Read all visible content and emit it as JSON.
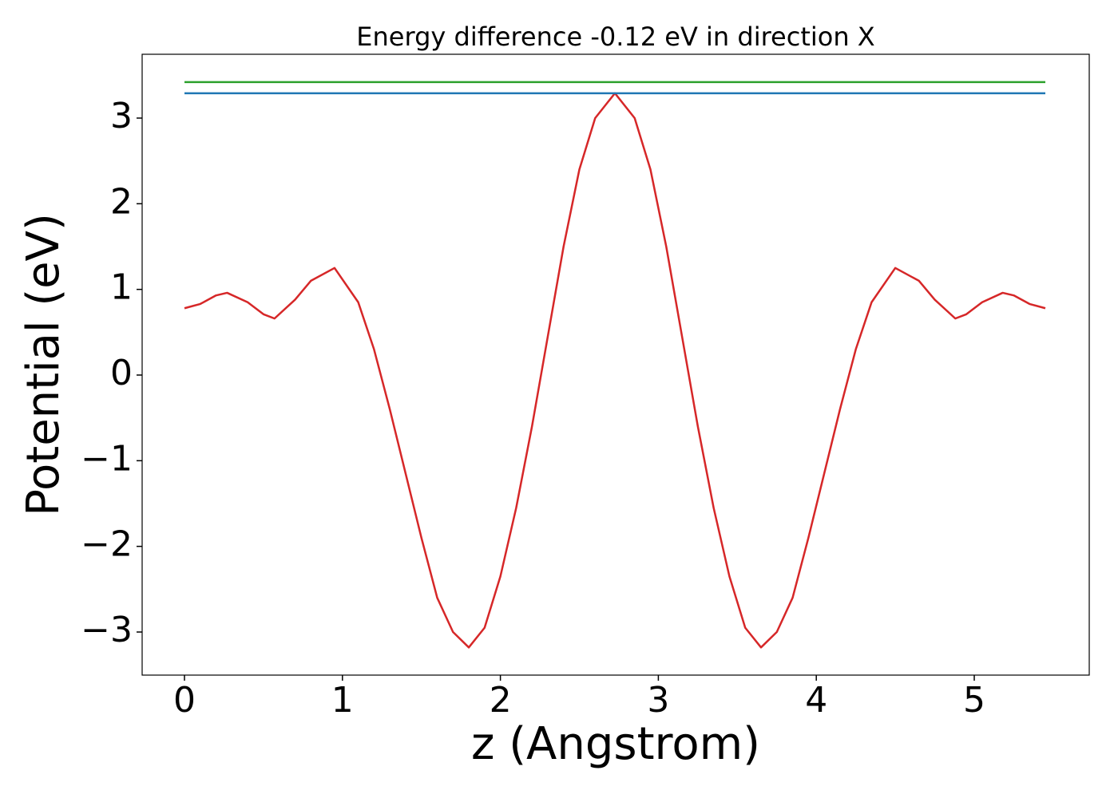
{
  "chart_data": {
    "type": "line",
    "title": "Energy difference -0.12 eV in direction X",
    "x_label": "z (Angstrom)",
    "y_label": "Potential (eV)",
    "xlim": [
      -0.268,
      5.728
    ],
    "ylim": [
      -3.503,
      3.745
    ],
    "xticks": [
      0,
      1,
      2,
      3,
      4,
      5
    ],
    "yticks": [
      {
        "value": -3,
        "label": "−3"
      },
      {
        "value": -2,
        "label": "−2"
      },
      {
        "value": -1,
        "label": "−1"
      },
      0,
      1,
      2,
      3
    ],
    "grid": false,
    "series": [
      {
        "color": "#d62728",
        "x": [
          0,
          0.1,
          0.2,
          0.27,
          0.4,
          0.5,
          0.57,
          0.7,
          0.8,
          0.95,
          1.1,
          1.2,
          1.3,
          1.4,
          1.5,
          1.6,
          1.7,
          1.8,
          1.9,
          2.0,
          2.1,
          2.2,
          2.3,
          2.4,
          2.5,
          2.6,
          2.725,
          2.85,
          2.95,
          3.05,
          3.15,
          3.25,
          3.35,
          3.45,
          3.55,
          3.65,
          3.75,
          3.85,
          3.95,
          4.05,
          4.15,
          4.25,
          4.35,
          4.5,
          4.65,
          4.75,
          4.88,
          4.95,
          5.05,
          5.18,
          5.25,
          5.35,
          5.45
        ],
        "values": [
          0.78,
          0.83,
          0.93,
          0.96,
          0.85,
          0.71,
          0.66,
          0.88,
          1.1,
          1.25,
          0.85,
          0.3,
          -0.4,
          -1.15,
          -1.9,
          -2.6,
          -3.0,
          -3.18,
          -2.95,
          -2.35,
          -1.55,
          -0.6,
          0.45,
          1.5,
          2.4,
          3.0,
          3.29,
          3.0,
          2.4,
          1.5,
          0.45,
          -0.6,
          -1.55,
          -2.35,
          -2.95,
          -3.18,
          -3.0,
          -2.6,
          -1.9,
          -1.15,
          -0.4,
          0.3,
          0.85,
          1.25,
          1.1,
          0.88,
          0.66,
          0.71,
          0.85,
          0.96,
          0.93,
          0.83,
          0.78
        ]
      },
      {
        "color": "#1f77b4",
        "x": [
          0,
          5.45
        ],
        "values": [
          3.29,
          3.29
        ]
      },
      {
        "color": "#2ca02c",
        "x": [
          0,
          5.45
        ],
        "values": [
          3.42,
          3.42
        ]
      }
    ]
  }
}
